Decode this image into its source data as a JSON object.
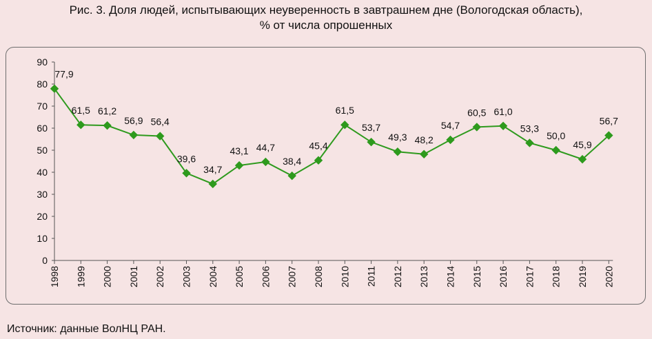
{
  "title_line1": "Рис. 3. Доля людей, испытывающих неуверенность в завтрашнем дне (Вологодская область),",
  "title_line2": "% от числа опрошенных",
  "source": "Источник: данные ВолНЦ РАН.",
  "colors": {
    "line": "#2e9a1d",
    "marker": "#2e9a1d",
    "axis": "#555555",
    "background": "#f6e4e4"
  },
  "chart_data": {
    "type": "line",
    "title": "Рис. 3. Доля людей, испытывающих неуверенность в завтрашнем дне (Вологодская область), % от числа опрошенных",
    "xlabel": "",
    "ylabel": "",
    "ylim": [
      0,
      90
    ],
    "yticks": [
      0,
      10,
      20,
      30,
      40,
      50,
      60,
      70,
      80,
      90
    ],
    "grid": false,
    "categories": [
      "1998",
      "1999",
      "2000",
      "2001",
      "2002",
      "2003",
      "2004",
      "2005",
      "2006",
      "2007",
      "2008",
      "2010",
      "2011",
      "2012",
      "2013",
      "2014",
      "2015",
      "2016",
      "2017",
      "2018",
      "2019",
      "2020"
    ],
    "values": [
      77.9,
      61.5,
      61.2,
      56.9,
      56.4,
      39.6,
      34.7,
      43.1,
      44.7,
      38.4,
      45.4,
      61.5,
      53.7,
      49.3,
      48.2,
      54.7,
      60.5,
      61.0,
      53.3,
      50.0,
      45.9,
      56.7
    ],
    "data_labels": [
      "77,9",
      "61,5",
      "61,2",
      "56,9",
      "56,4",
      "39,6",
      "34,7",
      "43,1",
      "44,7",
      "38,4",
      "45,4",
      "61,5",
      "53,7",
      "49,3",
      "48,2",
      "54,7",
      "60,5",
      "61,0",
      "53,3",
      "50,0",
      "45,9",
      "56,7"
    ]
  }
}
